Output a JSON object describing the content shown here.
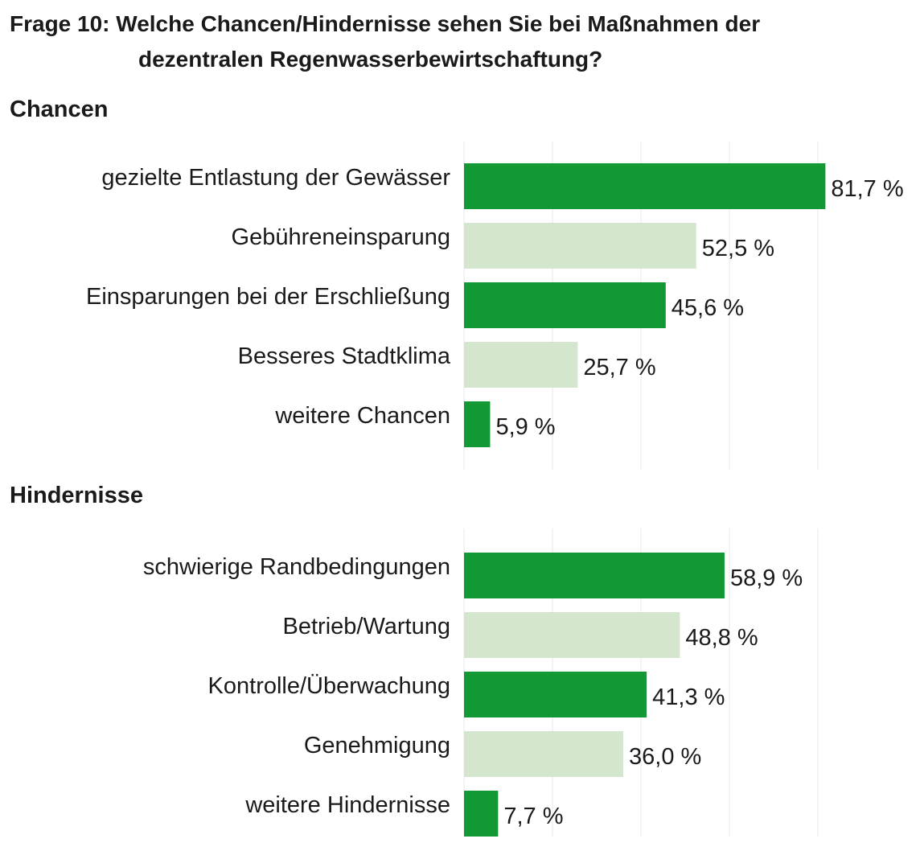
{
  "title_line1": "Frage 10: Welche Chancen/Hindernisse sehen Sie bei Maßnahmen der",
  "title_line2": "dezentralen Regenwasserbewirtschaftung?",
  "colors": {
    "dark": "#129933",
    "light": "#d4e6cd",
    "grid": "#e8e8e8",
    "text": "#1a1a1a"
  },
  "chart_data": [
    {
      "type": "bar",
      "orientation": "horizontal",
      "section": "Chancen",
      "categories": [
        "gezielte Entlastung der Gewässer",
        "Gebühreneinsparung",
        "Einsparungen bei der Erschließung",
        "Besseres Stadtklima",
        "weitere Chancen"
      ],
      "values": [
        81.7,
        52.5,
        45.6,
        25.7,
        5.9
      ],
      "labels": [
        "81,7 %",
        "52,5 %",
        "45,6 %",
        "25,7 %",
        "5,9 %"
      ],
      "unit": "%",
      "bar_colors": [
        "dark",
        "light",
        "dark",
        "light",
        "dark"
      ],
      "xlim": [
        0,
        100
      ],
      "grid": true
    },
    {
      "type": "bar",
      "orientation": "horizontal",
      "section": "Hindernisse",
      "categories": [
        "schwierige Randbedingungen",
        "Betrieb/Wartung",
        "Kontrolle/Überwachung",
        "Genehmigung",
        "weitere Hindernisse"
      ],
      "values": [
        58.9,
        48.8,
        41.3,
        36.0,
        7.7
      ],
      "labels": [
        "58,9 %",
        "48,8 %",
        "41,3 %",
        "36,0 %",
        "7,7 %"
      ],
      "unit": "%",
      "bar_colors": [
        "dark",
        "light",
        "dark",
        "light",
        "dark"
      ],
      "xlim": [
        0,
        100
      ],
      "grid": true
    }
  ]
}
